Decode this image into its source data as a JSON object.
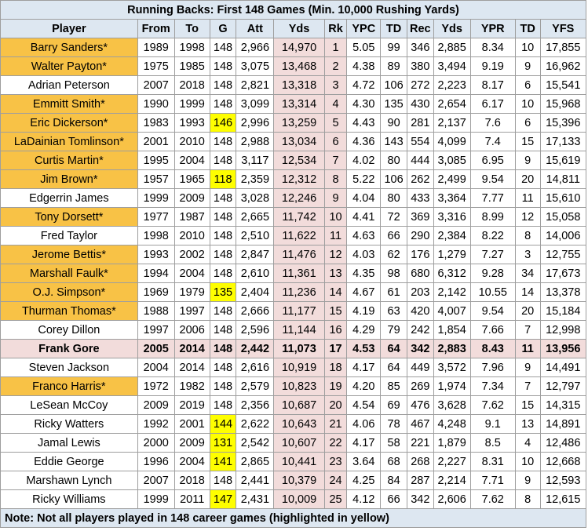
{
  "title": "Running Backs: First 148 Games (Min. 10,000 Rushing Yards)",
  "headers": [
    "Player",
    "From",
    "To",
    "G",
    "Att",
    "Yds",
    "Rk",
    "YPC",
    "TD",
    "Rec",
    "Yds",
    "YPR",
    "TD",
    "YFS"
  ],
  "rows": [
    {
      "player": "Barry Sanders*",
      "from": "1989",
      "to": "1998",
      "g": "148",
      "att": "2,966",
      "yds": "14,970",
      "rk": "1",
      "ypc": "5.05",
      "td": "99",
      "rec": "346",
      "ryds": "2,885",
      "ypr": "8.34",
      "rtd": "10",
      "yfs": "17,855",
      "hof": true,
      "short": false,
      "bold": false
    },
    {
      "player": "Walter Payton*",
      "from": "1975",
      "to": "1985",
      "g": "148",
      "att": "3,075",
      "yds": "13,468",
      "rk": "2",
      "ypc": "4.38",
      "td": "89",
      "rec": "380",
      "ryds": "3,494",
      "ypr": "9.19",
      "rtd": "9",
      "yfs": "16,962",
      "hof": true,
      "short": false,
      "bold": false
    },
    {
      "player": "Adrian Peterson",
      "from": "2007",
      "to": "2018",
      "g": "148",
      "att": "2,821",
      "yds": "13,318",
      "rk": "3",
      "ypc": "4.72",
      "td": "106",
      "rec": "272",
      "ryds": "2,223",
      "ypr": "8.17",
      "rtd": "6",
      "yfs": "15,541",
      "hof": false,
      "short": false,
      "bold": false
    },
    {
      "player": "Emmitt Smith*",
      "from": "1990",
      "to": "1999",
      "g": "148",
      "att": "3,099",
      "yds": "13,314",
      "rk": "4",
      "ypc": "4.30",
      "td": "135",
      "rec": "430",
      "ryds": "2,654",
      "ypr": "6.17",
      "rtd": "10",
      "yfs": "15,968",
      "hof": true,
      "short": false,
      "bold": false
    },
    {
      "player": "Eric Dickerson*",
      "from": "1983",
      "to": "1993",
      "g": "146",
      "att": "2,996",
      "yds": "13,259",
      "rk": "5",
      "ypc": "4.43",
      "td": "90",
      "rec": "281",
      "ryds": "2,137",
      "ypr": "7.6",
      "rtd": "6",
      "yfs": "15,396",
      "hof": true,
      "short": true,
      "bold": false
    },
    {
      "player": "LaDainian Tomlinson*",
      "from": "2001",
      "to": "2010",
      "g": "148",
      "att": "2,988",
      "yds": "13,034",
      "rk": "6",
      "ypc": "4.36",
      "td": "143",
      "rec": "554",
      "ryds": "4,099",
      "ypr": "7.4",
      "rtd": "15",
      "yfs": "17,133",
      "hof": true,
      "short": false,
      "bold": false
    },
    {
      "player": "Curtis Martin*",
      "from": "1995",
      "to": "2004",
      "g": "148",
      "att": "3,117",
      "yds": "12,534",
      "rk": "7",
      "ypc": "4.02",
      "td": "80",
      "rec": "444",
      "ryds": "3,085",
      "ypr": "6.95",
      "rtd": "9",
      "yfs": "15,619",
      "hof": true,
      "short": false,
      "bold": false
    },
    {
      "player": "Jim Brown*",
      "from": "1957",
      "to": "1965",
      "g": "118",
      "att": "2,359",
      "yds": "12,312",
      "rk": "8",
      "ypc": "5.22",
      "td": "106",
      "rec": "262",
      "ryds": "2,499",
      "ypr": "9.54",
      "rtd": "20",
      "yfs": "14,811",
      "hof": true,
      "short": true,
      "bold": false
    },
    {
      "player": "Edgerrin James",
      "from": "1999",
      "to": "2009",
      "g": "148",
      "att": "3,028",
      "yds": "12,246",
      "rk": "9",
      "ypc": "4.04",
      "td": "80",
      "rec": "433",
      "ryds": "3,364",
      "ypr": "7.77",
      "rtd": "11",
      "yfs": "15,610",
      "hof": false,
      "short": false,
      "bold": false
    },
    {
      "player": "Tony Dorsett*",
      "from": "1977",
      "to": "1987",
      "g": "148",
      "att": "2,665",
      "yds": "11,742",
      "rk": "10",
      "ypc": "4.41",
      "td": "72",
      "rec": "369",
      "ryds": "3,316",
      "ypr": "8.99",
      "rtd": "12",
      "yfs": "15,058",
      "hof": true,
      "short": false,
      "bold": false
    },
    {
      "player": "Fred Taylor",
      "from": "1998",
      "to": "2010",
      "g": "148",
      "att": "2,510",
      "yds": "11,622",
      "rk": "11",
      "ypc": "4.63",
      "td": "66",
      "rec": "290",
      "ryds": "2,384",
      "ypr": "8.22",
      "rtd": "8",
      "yfs": "14,006",
      "hof": false,
      "short": false,
      "bold": false
    },
    {
      "player": "Jerome Bettis*",
      "from": "1993",
      "to": "2002",
      "g": "148",
      "att": "2,847",
      "yds": "11,476",
      "rk": "12",
      "ypc": "4.03",
      "td": "62",
      "rec": "176",
      "ryds": "1,279",
      "ypr": "7.27",
      "rtd": "3",
      "yfs": "12,755",
      "hof": true,
      "short": false,
      "bold": false
    },
    {
      "player": "Marshall Faulk*",
      "from": "1994",
      "to": "2004",
      "g": "148",
      "att": "2,610",
      "yds": "11,361",
      "rk": "13",
      "ypc": "4.35",
      "td": "98",
      "rec": "680",
      "ryds": "6,312",
      "ypr": "9.28",
      "rtd": "34",
      "yfs": "17,673",
      "hof": true,
      "short": false,
      "bold": false
    },
    {
      "player": "O.J. Simpson*",
      "from": "1969",
      "to": "1979",
      "g": "135",
      "att": "2,404",
      "yds": "11,236",
      "rk": "14",
      "ypc": "4.67",
      "td": "61",
      "rec": "203",
      "ryds": "2,142",
      "ypr": "10.55",
      "rtd": "14",
      "yfs": "13,378",
      "hof": true,
      "short": true,
      "bold": false
    },
    {
      "player": "Thurman Thomas*",
      "from": "1988",
      "to": "1997",
      "g": "148",
      "att": "2,666",
      "yds": "11,177",
      "rk": "15",
      "ypc": "4.19",
      "td": "63",
      "rec": "420",
      "ryds": "4,007",
      "ypr": "9.54",
      "rtd": "20",
      "yfs": "15,184",
      "hof": true,
      "short": false,
      "bold": false
    },
    {
      "player": "Corey Dillon",
      "from": "1997",
      "to": "2006",
      "g": "148",
      "att": "2,596",
      "yds": "11,144",
      "rk": "16",
      "ypc": "4.29",
      "td": "79",
      "rec": "242",
      "ryds": "1,854",
      "ypr": "7.66",
      "rtd": "7",
      "yfs": "12,998",
      "hof": false,
      "short": false,
      "bold": false
    },
    {
      "player": "Frank Gore",
      "from": "2005",
      "to": "2014",
      "g": "148",
      "att": "2,442",
      "yds": "11,073",
      "rk": "17",
      "ypc": "4.53",
      "td": "64",
      "rec": "342",
      "ryds": "2,883",
      "ypr": "8.43",
      "rtd": "11",
      "yfs": "13,956",
      "hof": false,
      "short": false,
      "bold": true
    },
    {
      "player": "Steven Jackson",
      "from": "2004",
      "to": "2014",
      "g": "148",
      "att": "2,616",
      "yds": "10,919",
      "rk": "18",
      "ypc": "4.17",
      "td": "64",
      "rec": "449",
      "ryds": "3,572",
      "ypr": "7.96",
      "rtd": "9",
      "yfs": "14,491",
      "hof": false,
      "short": false,
      "bold": false
    },
    {
      "player": "Franco Harris*",
      "from": "1972",
      "to": "1982",
      "g": "148",
      "att": "2,579",
      "yds": "10,823",
      "rk": "19",
      "ypc": "4.20",
      "td": "85",
      "rec": "269",
      "ryds": "1,974",
      "ypr": "7.34",
      "rtd": "7",
      "yfs": "12,797",
      "hof": true,
      "short": false,
      "bold": false
    },
    {
      "player": "LeSean McCoy",
      "from": "2009",
      "to": "2019",
      "g": "148",
      "att": "2,356",
      "yds": "10,687",
      "rk": "20",
      "ypc": "4.54",
      "td": "69",
      "rec": "476",
      "ryds": "3,628",
      "ypr": "7.62",
      "rtd": "15",
      "yfs": "14,315",
      "hof": false,
      "short": false,
      "bold": false
    },
    {
      "player": "Ricky Watters",
      "from": "1992",
      "to": "2001",
      "g": "144",
      "att": "2,622",
      "yds": "10,643",
      "rk": "21",
      "ypc": "4.06",
      "td": "78",
      "rec": "467",
      "ryds": "4,248",
      "ypr": "9.1",
      "rtd": "13",
      "yfs": "14,891",
      "hof": false,
      "short": true,
      "bold": false
    },
    {
      "player": "Jamal Lewis",
      "from": "2000",
      "to": "2009",
      "g": "131",
      "att": "2,542",
      "yds": "10,607",
      "rk": "22",
      "ypc": "4.17",
      "td": "58",
      "rec": "221",
      "ryds": "1,879",
      "ypr": "8.5",
      "rtd": "4",
      "yfs": "12,486",
      "hof": false,
      "short": true,
      "bold": false
    },
    {
      "player": "Eddie George",
      "from": "1996",
      "to": "2004",
      "g": "141",
      "att": "2,865",
      "yds": "10,441",
      "rk": "23",
      "ypc": "3.64",
      "td": "68",
      "rec": "268",
      "ryds": "2,227",
      "ypr": "8.31",
      "rtd": "10",
      "yfs": "12,668",
      "hof": false,
      "short": true,
      "bold": false
    },
    {
      "player": "Marshawn Lynch",
      "from": "2007",
      "to": "2018",
      "g": "148",
      "att": "2,441",
      "yds": "10,379",
      "rk": "24",
      "ypc": "4.25",
      "td": "84",
      "rec": "287",
      "ryds": "2,214",
      "ypr": "7.71",
      "rtd": "9",
      "yfs": "12,593",
      "hof": false,
      "short": false,
      "bold": false
    },
    {
      "player": "Ricky Williams",
      "from": "1999",
      "to": "2011",
      "g": "147",
      "att": "2,431",
      "yds": "10,009",
      "rk": "25",
      "ypc": "4.12",
      "td": "66",
      "rec": "342",
      "ryds": "2,606",
      "ypr": "7.62",
      "rtd": "8",
      "yfs": "12,615",
      "hof": false,
      "short": true,
      "bold": false
    }
  ],
  "note": "Note: Not all players played in 148 career games (highlighted in yellow)",
  "colors": {
    "header_bg": "#dde7f1",
    "hof_bg": "#f8c246",
    "short_games_bg": "#fefe00",
    "rush_yds_bg": "#f2dcdb"
  }
}
